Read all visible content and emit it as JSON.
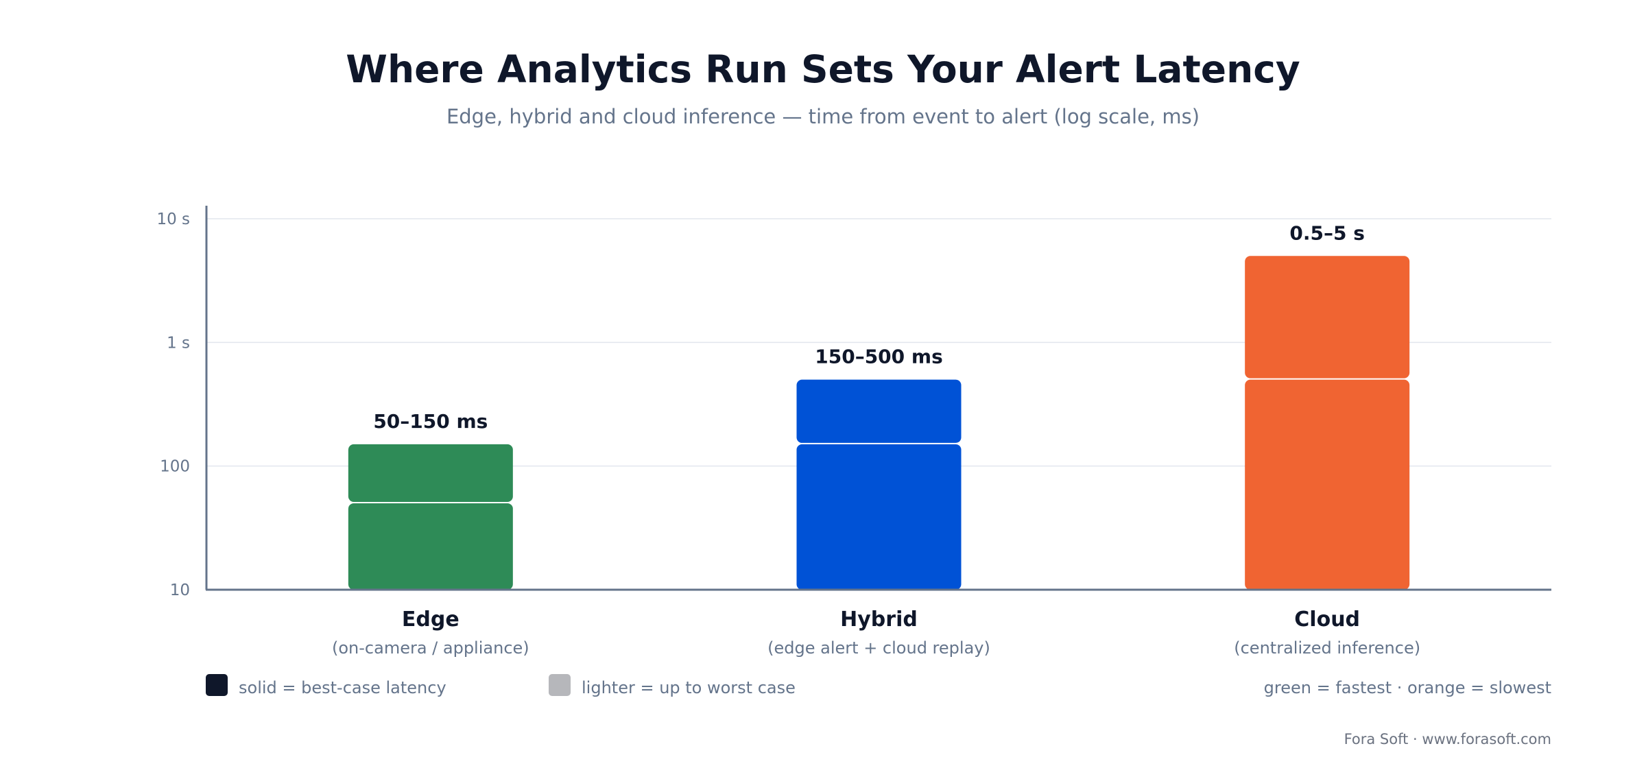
{
  "chart_data": {
    "type": "bar",
    "title": "Where Analytics Run Sets Your Alert Latency",
    "subtitle": "Edge, hybrid and cloud inference — time from event to alert (log scale, ms)",
    "y_scale": "log",
    "ylim": [
      10,
      10000
    ],
    "y_ticks": [
      {
        "value": 10,
        "label": "10"
      },
      {
        "value": 100,
        "label": "100"
      },
      {
        "value": 1000,
        "label": "1 s"
      },
      {
        "value": 10000,
        "label": "10 s"
      }
    ],
    "grid": true,
    "categories": [
      {
        "name": "Edge",
        "sublabel": "(on-camera / appliance)",
        "range_label": "50–150 ms",
        "best_case": 50,
        "worst_case": 150,
        "color": "#2e8b57"
      },
      {
        "name": "Hybrid",
        "sublabel": "(edge alert + cloud replay)",
        "range_label": "150–500 ms",
        "best_case": 150,
        "worst_case": 500,
        "color": "#0052d6"
      },
      {
        "name": "Cloud",
        "sublabel": "(centralized inference)",
        "range_label": "0.5–5 s",
        "best_case": 500,
        "worst_case": 5000,
        "color": "#f06432"
      }
    ],
    "legend": [
      {
        "label": "solid = best-case latency",
        "color": "#0f172a"
      },
      {
        "label": "lighter = up to worst case",
        "color": "#b6b7bb"
      }
    ],
    "legend_note": "green = fastest · orange = slowest",
    "credit": "Fora Soft · www.forasoft.com"
  }
}
